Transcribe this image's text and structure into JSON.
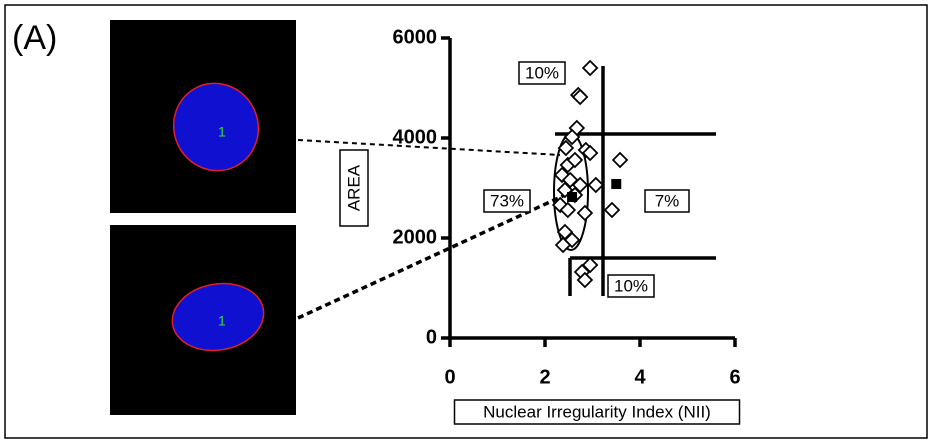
{
  "panel_label": "(A)",
  "images": [
    {
      "label": "1"
    },
    {
      "label": "1"
    }
  ],
  "chart_data": {
    "type": "scatter",
    "xlabel": "Nuclear Irregularity Index (NII)",
    "ylabel": "AREA",
    "xlim": [
      0,
      6
    ],
    "ylim": [
      0,
      6000
    ],
    "xticks": [
      0,
      2,
      4,
      6
    ],
    "yticks": [
      0,
      2000,
      4000,
      6000
    ],
    "series": [
      {
        "marker": "diamond",
        "color": "#000000",
        "x": [
          2.95,
          2.7,
          2.74,
          2.67,
          2.57,
          2.44,
          2.86,
          2.48,
          2.95,
          2.63,
          2.36,
          2.53,
          2.74,
          3.07,
          2.42,
          2.63,
          2.32,
          2.48,
          2.84,
          2.42,
          2.57,
          2.38,
          2.95,
          2.78,
          2.84,
          3.58,
          3.41
        ],
        "y": [
          5400,
          4860,
          4820,
          4200,
          4020,
          3800,
          3760,
          3460,
          3700,
          3560,
          3260,
          3160,
          3060,
          3060,
          2960,
          2860,
          2660,
          2560,
          2500,
          2120,
          1960,
          1860,
          1460,
          1320,
          1160,
          3560,
          2560
        ]
      },
      {
        "marker": "square",
        "color": "#000000",
        "x": [
          2.57,
          3.5
        ],
        "y": [
          2820,
          3080
        ]
      }
    ],
    "annotations": [
      "10%",
      "73%",
      "7%",
      "10%"
    ]
  }
}
